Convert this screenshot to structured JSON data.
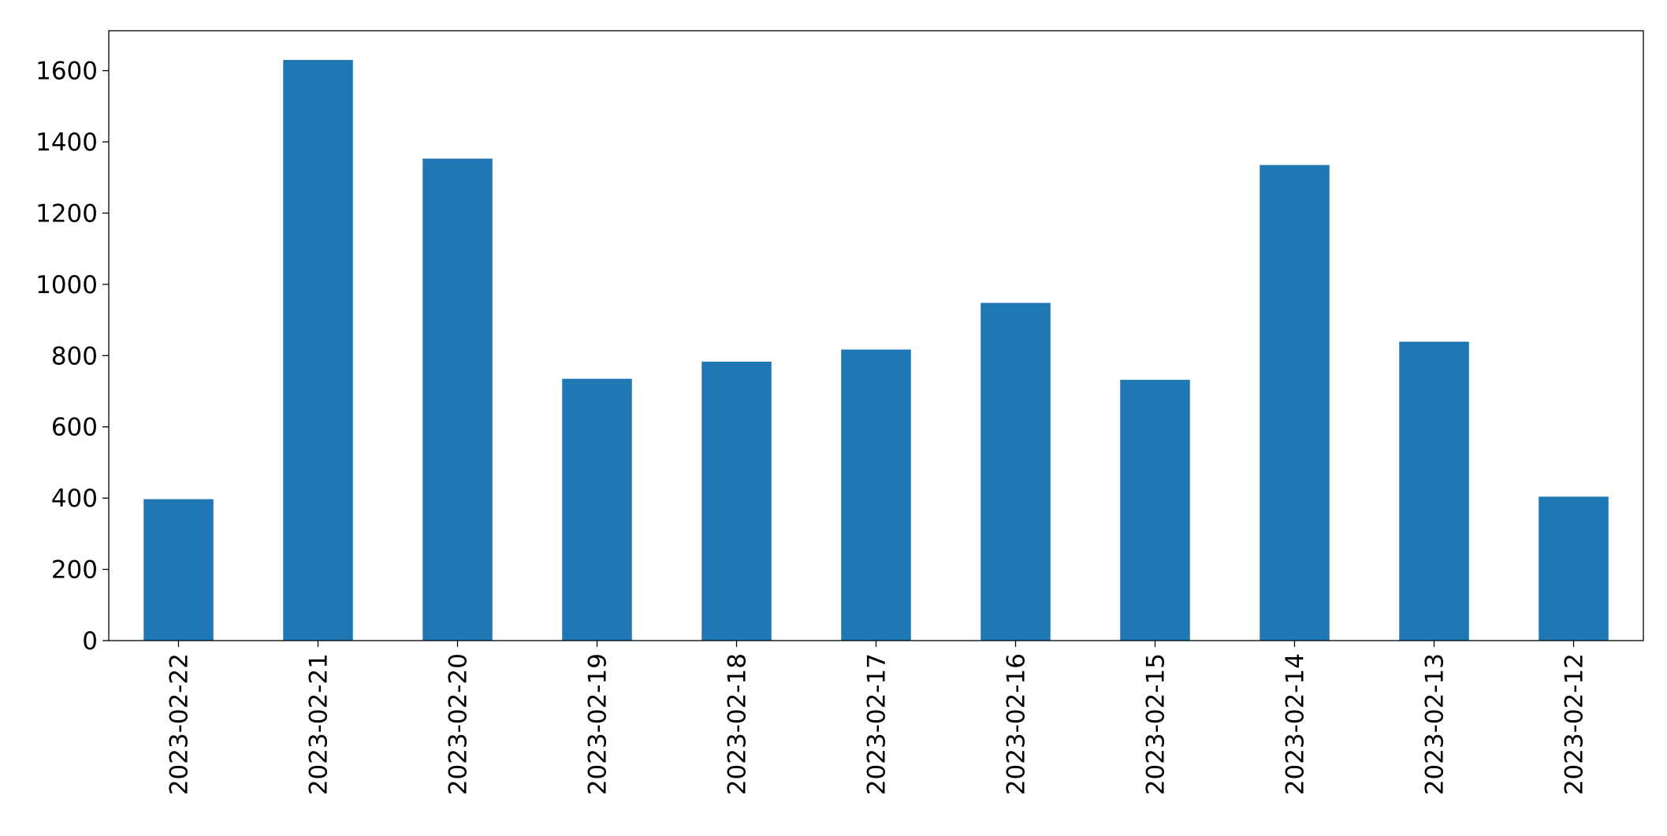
{
  "chart_data": {
    "type": "bar",
    "categories": [
      "2023-02-22",
      "2023-02-21",
      "2023-02-20",
      "2023-02-19",
      "2023-02-18",
      "2023-02-17",
      "2023-02-16",
      "2023-02-15",
      "2023-02-14",
      "2023-02-13",
      "2023-02-12"
    ],
    "values": [
      397,
      1630,
      1353,
      735,
      783,
      817,
      948,
      732,
      1335,
      839,
      404
    ],
    "color": "#1f77b4",
    "ylim": [
      0,
      1712
    ],
    "yticks": [
      0,
      200,
      400,
      600,
      800,
      1000,
      1200,
      1400,
      1600
    ],
    "grid": false
  }
}
